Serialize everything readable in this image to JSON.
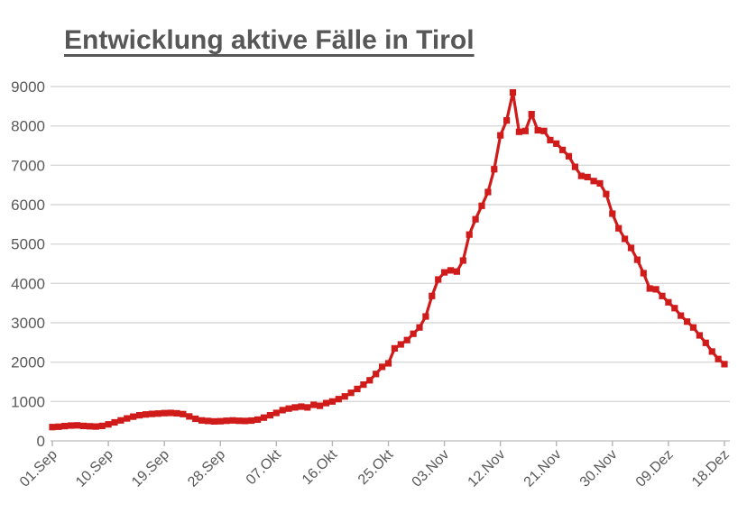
{
  "page": {
    "background_color": "#ffffff"
  },
  "colors": {
    "series_red": "#d01b1b",
    "gridline": "#d9d9d9",
    "axis_line": "#c6c6c6",
    "tick_mark": "#b5b5b5",
    "tick_text": "#595959",
    "title_text": "#575757"
  },
  "chart_data": {
    "type": "line",
    "title": "Entwicklung aktive Fälle in Tirol",
    "xlabel": "",
    "ylabel": "",
    "legend": "none",
    "grid": "horizontal",
    "marker": "square",
    "x_frequency": "daily",
    "x_tick_interval_days": 9,
    "x_tick_labels": [
      "01.Sep",
      "10.Sep",
      "19.Sep",
      "28.Sep",
      "07.Okt",
      "16.Okt",
      "25.Okt",
      "03.Nov",
      "12.Nov",
      "21.Nov",
      "30.Nov",
      "09.Dez",
      "18.Dez"
    ],
    "ylim": [
      0,
      9000
    ],
    "y_tick_step": 1000,
    "y_tick_labels": [
      "0",
      "1000",
      "2000",
      "3000",
      "4000",
      "5000",
      "6000",
      "7000",
      "8000",
      "9000"
    ],
    "series": [
      {
        "name": "aktive Fälle",
        "color": "#d01b1b",
        "values": [
          350,
          360,
          375,
          390,
          395,
          380,
          370,
          365,
          380,
          420,
          470,
          520,
          570,
          615,
          650,
          670,
          685,
          695,
          705,
          710,
          700,
          680,
          620,
          560,
          520,
          505,
          495,
          500,
          510,
          520,
          510,
          505,
          515,
          540,
          590,
          650,
          710,
          780,
          820,
          850,
          870,
          850,
          915,
          890,
          960,
          1000,
          1060,
          1130,
          1220,
          1320,
          1430,
          1540,
          1700,
          1880,
          1970,
          2350,
          2450,
          2560,
          2720,
          2880,
          3160,
          3680,
          4100,
          4280,
          4330,
          4300,
          4580,
          5240,
          5630,
          5970,
          6320,
          6900,
          7760,
          8140,
          8850,
          7850,
          7870,
          8300,
          7890,
          7870,
          7640,
          7550,
          7390,
          7230,
          6960,
          6730,
          6700,
          6600,
          6540,
          6270,
          5770,
          5400,
          5130,
          4900,
          4600,
          4260,
          3870,
          3850,
          3680,
          3520,
          3370,
          3180,
          3030,
          2880,
          2680,
          2490,
          2270,
          2080,
          1950
        ]
      }
    ]
  }
}
